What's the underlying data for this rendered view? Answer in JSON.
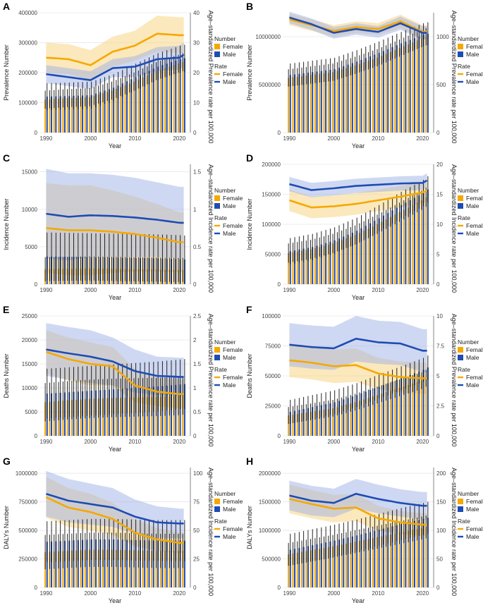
{
  "colors": {
    "female": "#F5A800",
    "male": "#1F4CB3",
    "female_band": "#F8D27A",
    "male_band": "#9FB1E6",
    "axis": "#333333",
    "errbar": "#111111"
  },
  "legend": {
    "number_title": "Number",
    "rate_title": "Rate",
    "female": "Female",
    "male": "Male"
  },
  "chart_data": [
    {
      "panel": "A",
      "type": "bar+line",
      "xlabel": "Year",
      "ylabel": "Prevalence Number",
      "y2label": "Age–standardized Prevalence rate per 100,000",
      "ylim": [
        0,
        400000
      ],
      "yticks": [
        0,
        100000,
        200000,
        300000,
        400000
      ],
      "y2lim": [
        0,
        40
      ],
      "y2ticks": [
        0,
        10,
        20,
        30,
        40
      ],
      "x": [
        1990,
        1995,
        2000,
        2005,
        2010,
        2015,
        2020,
        2021
      ],
      "xticks": [
        1990,
        2000,
        2010,
        2020
      ],
      "series": [
        {
          "name": "Female number",
          "kind": "bar",
          "values": [
            110000,
            115000,
            118000,
            140000,
            170000,
            205000,
            230000,
            235000
          ],
          "err": 30000
        },
        {
          "name": "Male number",
          "kind": "bar",
          "values": [
            120000,
            122000,
            125000,
            150000,
            185000,
            220000,
            245000,
            248000
          ],
          "err": 45000
        },
        {
          "name": "Female rate",
          "kind": "line",
          "values": [
            25,
            24.5,
            22.5,
            27,
            29,
            33,
            32.5,
            32.5
          ],
          "band": [
            5,
            5,
            5,
            5,
            5,
            6,
            6,
            6
          ]
        },
        {
          "name": "Male rate",
          "kind": "line",
          "values": [
            19.5,
            18.5,
            17.5,
            21.5,
            22,
            24.5,
            25,
            26
          ],
          "band": [
            3,
            3,
            3,
            3,
            3.5,
            4,
            4,
            4
          ]
        }
      ]
    },
    {
      "panel": "B",
      "type": "bar+line",
      "xlabel": "Year",
      "ylabel": "Prevalence Number",
      "y2label": "Age–standardized Prevalence rate per 100,000",
      "ylim": [
        0,
        12500000
      ],
      "yticks": [
        0,
        5000000,
        10000000
      ],
      "y2lim": [
        0,
        1250
      ],
      "y2ticks": [
        0,
        500,
        1000
      ],
      "x": [
        1990,
        1995,
        2000,
        2005,
        2010,
        2015,
        2020,
        2021
      ],
      "xticks": [
        1990,
        2000,
        2010,
        2020
      ],
      "series": [
        {
          "name": "Female number",
          "kind": "bar",
          "values": [
            5700000,
            6000000,
            6300000,
            7000000,
            7800000,
            8800000,
            9800000,
            10000000
          ],
          "err": 900000
        },
        {
          "name": "Male number",
          "kind": "bar",
          "values": [
            6000000,
            6300000,
            6600000,
            7400000,
            8300000,
            9300000,
            10200000,
            10300000
          ],
          "err": 1200000
        },
        {
          "name": "Female rate",
          "kind": "line",
          "values": [
            1180,
            1120,
            1060,
            1100,
            1080,
            1160,
            1050,
            1050
          ],
          "band": [
            60,
            60,
            60,
            60,
            60,
            70,
            70,
            70
          ]
        },
        {
          "name": "Male rate",
          "kind": "line",
          "values": [
            1200,
            1130,
            1040,
            1080,
            1050,
            1140,
            1040,
            1040
          ],
          "band": [
            60,
            60,
            60,
            60,
            60,
            70,
            70,
            70
          ]
        }
      ]
    },
    {
      "panel": "C",
      "type": "bar+line",
      "xlabel": "Year",
      "ylabel": "Incidence Number",
      "y2label": "Age–standardized Incidence rate per 100,000",
      "ylim": [
        0,
        16000
      ],
      "yticks": [
        0,
        5000,
        10000,
        15000
      ],
      "y2lim": [
        0,
        1.6
      ],
      "y2ticks": [
        0.0,
        0.5,
        1.0,
        1.5
      ],
      "x": [
        1990,
        1995,
        2000,
        2005,
        2010,
        2015,
        2020,
        2021
      ],
      "xticks": [
        1990,
        2000,
        2010,
        2020
      ],
      "series": [
        {
          "name": "Female number",
          "kind": "bar",
          "values": [
            2000,
            2050,
            2100,
            2050,
            2000,
            1950,
            1900,
            1900
          ],
          "err": 1600
        },
        {
          "name": "Male number",
          "kind": "bar",
          "values": [
            3700,
            3650,
            3600,
            3550,
            3500,
            3450,
            3350,
            3300
          ],
          "err": 3200
        },
        {
          "name": "Female rate",
          "kind": "line",
          "values": [
            0.75,
            0.72,
            0.72,
            0.7,
            0.67,
            0.62,
            0.56,
            0.56
          ],
          "band": [
            0.6,
            0.6,
            0.6,
            0.55,
            0.5,
            0.45,
            0.4,
            0.4
          ]
        },
        {
          "name": "Male rate",
          "kind": "line",
          "values": [
            0.94,
            0.9,
            0.92,
            0.91,
            0.89,
            0.86,
            0.82,
            0.82
          ],
          "band": [
            0.6,
            0.58,
            0.56,
            0.55,
            0.53,
            0.5,
            0.48,
            0.48
          ]
        }
      ]
    },
    {
      "panel": "D",
      "type": "bar+line",
      "xlabel": "Year",
      "ylabel": "Incidence Number",
      "y2label": "Age–standardized Incidence rate per 100,000",
      "ylim": [
        0,
        200000
      ],
      "yticks": [
        0,
        50000,
        100000,
        150000,
        200000
      ],
      "y2lim": [
        0,
        20
      ],
      "y2ticks": [
        0,
        5,
        10,
        15,
        20
      ],
      "x": [
        1990,
        1995,
        2000,
        2005,
        2010,
        2015,
        2020,
        2021
      ],
      "xticks": [
        1990,
        2000,
        2010,
        2020
      ],
      "series": [
        {
          "name": "Female number",
          "kind": "bar",
          "values": [
            52000,
            58000,
            68000,
            82000,
            100000,
            120000,
            140000,
            145000
          ],
          "err": 16000
        },
        {
          "name": "Male number",
          "kind": "bar",
          "values": [
            55000,
            62000,
            73000,
            89000,
            110000,
            132000,
            152000,
            158000
          ],
          "err": 22000
        },
        {
          "name": "Female rate",
          "kind": "line",
          "values": [
            14,
            12.8,
            13,
            13.4,
            14,
            14.6,
            15.3,
            15.6
          ],
          "band": [
            1.8,
            1.8,
            1.8,
            1.8,
            1.8,
            1.8,
            1.8,
            1.8
          ]
        },
        {
          "name": "Male rate",
          "kind": "line",
          "values": [
            16.7,
            15.7,
            16,
            16.4,
            16.6,
            16.8,
            16.9,
            17.3
          ],
          "band": [
            1.2,
            1.2,
            1.2,
            1.2,
            1.2,
            1.2,
            1.2,
            1.2
          ]
        }
      ]
    },
    {
      "panel": "E",
      "type": "bar+line",
      "xlabel": "Year",
      "ylabel": "Deaths Number",
      "y2label": "Age–standardized Prevalence rate per 100,000",
      "ylim": [
        0,
        25000
      ],
      "yticks": [
        0,
        5000,
        10000,
        15000,
        20000,
        25000
      ],
      "y2lim": [
        0,
        2.5
      ],
      "y2ticks": [
        0.0,
        0.5,
        1.0,
        1.5,
        2.0,
        2.5
      ],
      "x": [
        1990,
        1995,
        2000,
        2005,
        2010,
        2015,
        2020,
        2021
      ],
      "xticks": [
        1990,
        2000,
        2010,
        2020
      ],
      "series": [
        {
          "name": "Female number",
          "kind": "bar",
          "values": [
            7000,
            7400,
            7700,
            7900,
            8000,
            8100,
            8300,
            8400
          ],
          "err": 4000
        },
        {
          "name": "Male number",
          "kind": "bar",
          "values": [
            8800,
            9100,
            9400,
            9700,
            10000,
            10300,
            10700,
            10800
          ],
          "err": 5200
        },
        {
          "name": "Female rate",
          "kind": "line",
          "values": [
            1.75,
            1.6,
            1.5,
            1.45,
            1.05,
            0.92,
            0.87,
            0.87
          ],
          "band": [
            0.45,
            0.45,
            0.45,
            0.4,
            0.35,
            0.3,
            0.3,
            0.3
          ]
        },
        {
          "name": "Male rate",
          "kind": "line",
          "values": [
            1.8,
            1.72,
            1.65,
            1.55,
            1.35,
            1.25,
            1.23,
            1.23
          ],
          "band": [
            0.55,
            0.55,
            0.55,
            0.5,
            0.45,
            0.4,
            0.4,
            0.4
          ]
        }
      ]
    },
    {
      "panel": "F",
      "type": "bar+line",
      "xlabel": "Year",
      "ylabel": "Deaths Number",
      "y2label": "Age–standardized Prevalence rate per 100,000",
      "ylim": [
        0,
        100000
      ],
      "yticks": [
        0,
        25000,
        50000,
        75000,
        100000
      ],
      "y2lim": [
        0,
        10
      ],
      "y2ticks": [
        0.0,
        2.5,
        5.0,
        7.5,
        10.0
      ],
      "x": [
        1990,
        1995,
        2000,
        2005,
        2010,
        2015,
        2020,
        2021
      ],
      "xticks": [
        1990,
        2000,
        2010,
        2020
      ],
      "series": [
        {
          "name": "Female number",
          "kind": "bar",
          "values": [
            17000,
            20000,
            23000,
            28000,
            34000,
            40000,
            46000,
            48000
          ],
          "err": 7000
        },
        {
          "name": "Male number",
          "kind": "bar",
          "values": [
            20000,
            24000,
            28000,
            34000,
            41000,
            48000,
            55000,
            57000
          ],
          "err": 10000
        },
        {
          "name": "Female rate",
          "kind": "line",
          "values": [
            6.3,
            6.1,
            5.8,
            5.9,
            5.2,
            4.9,
            4.8,
            4.8
          ],
          "band": [
            1.4,
            1.4,
            1.4,
            1.4,
            1.3,
            1.3,
            1.3,
            1.3
          ]
        },
        {
          "name": "Male rate",
          "kind": "line",
          "values": [
            7.6,
            7.4,
            7.3,
            8.1,
            7.8,
            7.7,
            7.1,
            7.1
          ],
          "band": [
            1.8,
            1.8,
            1.8,
            1.9,
            1.8,
            1.8,
            1.8,
            1.8
          ]
        }
      ]
    },
    {
      "panel": "G",
      "type": "bar+line",
      "xlabel": "Year",
      "ylabel": "DALYs Number",
      "y2label": "Age–standardized Incidence rate per 100,000",
      "ylim": [
        0,
        1050000
      ],
      "yticks": [
        0,
        250000,
        500000,
        750000,
        1000000
      ],
      "y2lim": [
        0,
        105
      ],
      "y2ticks": [
        0,
        25,
        50,
        75,
        100
      ],
      "x": [
        1990,
        1995,
        2000,
        2005,
        2010,
        2015,
        2020,
        2021
      ],
      "xticks": [
        1990,
        2000,
        2010,
        2020
      ],
      "series": [
        {
          "name": "Female number",
          "kind": "bar",
          "values": [
            310000,
            320000,
            330000,
            330000,
            325000,
            320000,
            320000,
            320000
          ],
          "err": 150000
        },
        {
          "name": "Male number",
          "kind": "bar",
          "values": [
            400000,
            410000,
            420000,
            420000,
            415000,
            410000,
            410000,
            410000
          ],
          "err": 180000
        },
        {
          "name": "Female rate",
          "kind": "line",
          "values": [
            79,
            70,
            66,
            60,
            48,
            42,
            39,
            39
          ],
          "band": [
            18,
            17,
            16,
            14,
            12,
            10,
            9,
            9
          ]
        },
        {
          "name": "Male rate",
          "kind": "line",
          "values": [
            82,
            76,
            73,
            70,
            62,
            57,
            56,
            56
          ],
          "band": [
            20,
            19,
            18,
            17,
            15,
            14,
            13,
            13
          ]
        }
      ]
    },
    {
      "panel": "H",
      "type": "bar+line",
      "xlabel": "Year",
      "ylabel": "DALYs Number",
      "y2label": "Age–standardized Incidence rate per 100,000",
      "ylim": [
        0,
        2100000
      ],
      "yticks": [
        0,
        500000,
        1000000,
        1500000,
        2000000
      ],
      "y2lim": [
        0,
        210
      ],
      "y2ticks": [
        0,
        50,
        100,
        150,
        200
      ],
      "x": [
        1990,
        1995,
        2000,
        2005,
        2010,
        2015,
        2020,
        2021
      ],
      "xticks": [
        1990,
        2000,
        2010,
        2020
      ],
      "series": [
        {
          "name": "Female number",
          "kind": "bar",
          "values": [
            580000,
            650000,
            720000,
            800000,
            880000,
            960000,
            1040000,
            1060000
          ],
          "err": 200000
        },
        {
          "name": "Male number",
          "kind": "bar",
          "values": [
            660000,
            740000,
            820000,
            910000,
            1010000,
            1110000,
            1200000,
            1220000
          ],
          "err": 280000
        },
        {
          "name": "Female rate",
          "kind": "line",
          "values": [
            155,
            146,
            138,
            140,
            121,
            114,
            110,
            110
          ],
          "band": [
            25,
            25,
            24,
            24,
            22,
            20,
            20,
            20
          ]
        },
        {
          "name": "Male rate",
          "kind": "line",
          "values": [
            161,
            152,
            148,
            164,
            155,
            148,
            143,
            143
          ],
          "band": [
            26,
            26,
            25,
            26,
            25,
            24,
            24,
            24
          ]
        }
      ]
    }
  ]
}
